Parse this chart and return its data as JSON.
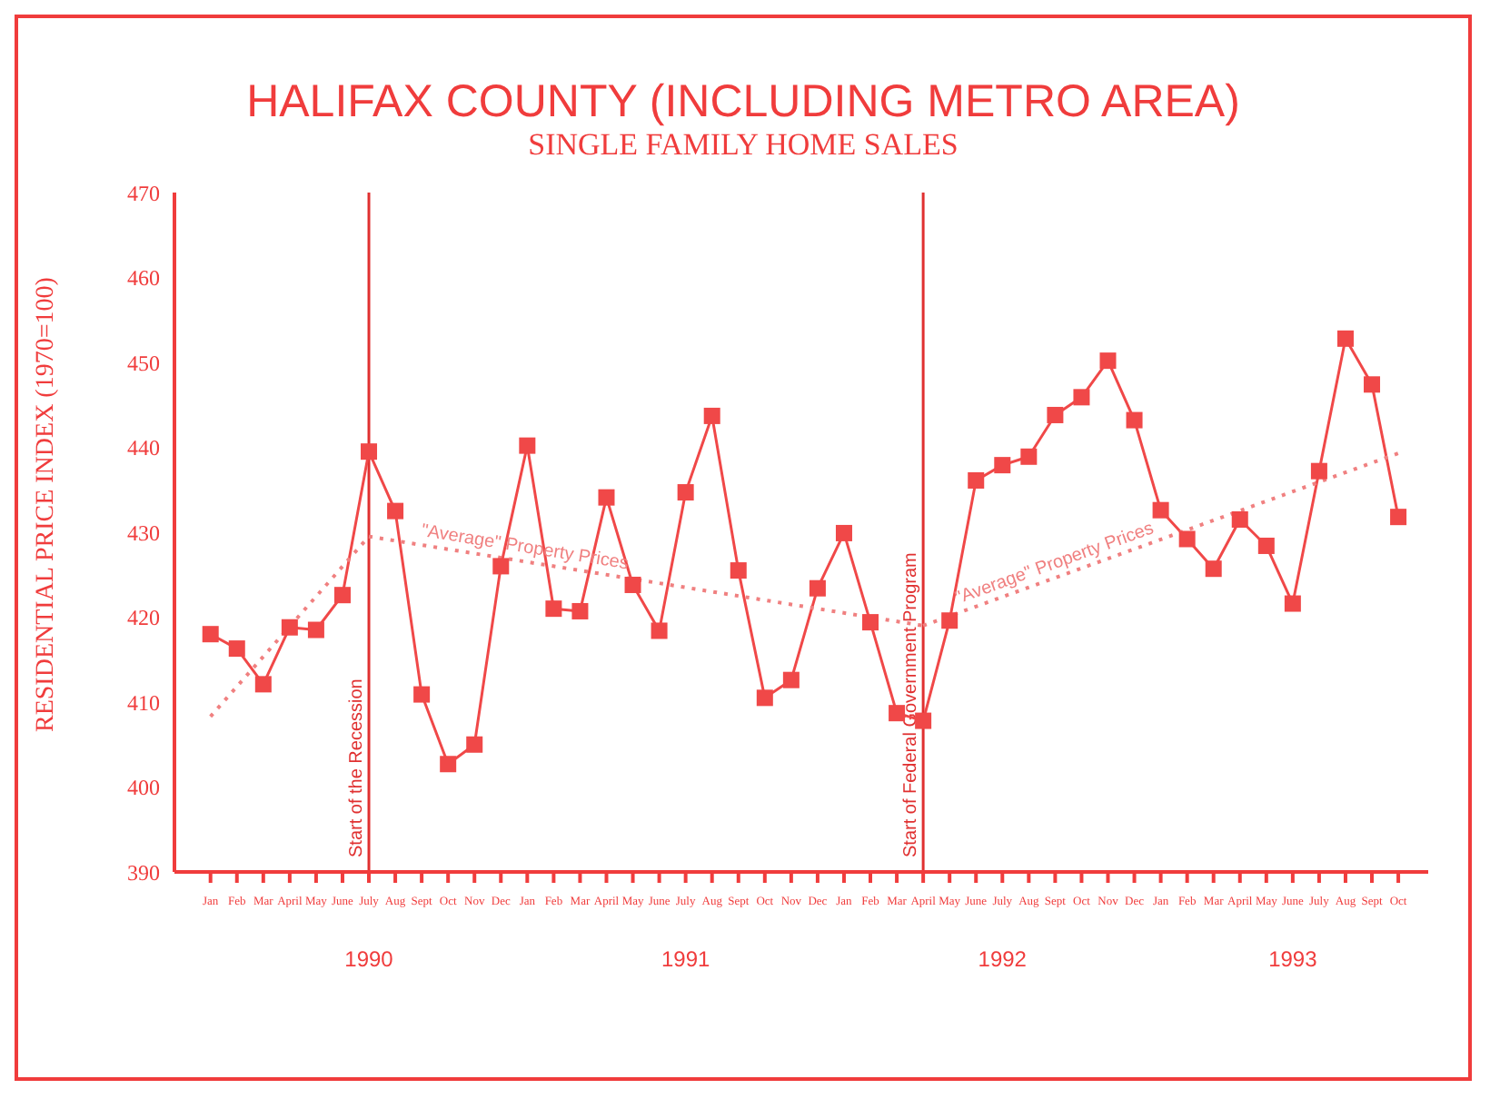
{
  "chart_data": {
    "type": "line",
    "title": "HALIFAX COUNTY (INCLUDING METRO AREA)",
    "subtitle": "SINGLE FAMILY HOME SALES",
    "ylabel": "RESIDENTIAL PRICE INDEX (1970=100)",
    "x": [
      "1990-01",
      "1990-02",
      "1990-03",
      "1990-04",
      "1990-05",
      "1990-06",
      "1990-07",
      "1990-08",
      "1990-09",
      "1990-10",
      "1990-11",
      "1990-12",
      "1991-01",
      "1991-02",
      "1991-03",
      "1991-04",
      "1991-05",
      "1991-06",
      "1991-07",
      "1991-08",
      "1991-09",
      "1991-10",
      "1991-11",
      "1991-12",
      "1992-01",
      "1992-02",
      "1992-03",
      "1992-04",
      "1992-05",
      "1992-06",
      "1992-07",
      "1992-08",
      "1992-09",
      "1992-10",
      "1992-11",
      "1992-12",
      "1993-01",
      "1993-02",
      "1993-03",
      "1993-04",
      "1993-05",
      "1993-06",
      "1993-07",
      "1993-08",
      "1993-09",
      "1993-10"
    ],
    "series": [
      {
        "color": "#f04848",
        "marker": "square",
        "values": [
          418,
          416.3,
          412.1,
          418.8,
          418.5,
          422.6,
          439.5,
          432.5,
          410.9,
          402.7,
          405,
          426,
          440.2,
          421,
          420.7,
          434.1,
          423.8,
          418.4,
          434.7,
          443.7,
          425.5,
          410.5,
          412.6,
          423.4,
          429.9,
          419.4,
          408.7,
          407.8,
          419.6,
          436.1,
          437.9,
          438.9,
          443.8,
          445.9,
          450.2,
          443.2,
          432.6,
          429.2,
          425.7,
          431.5,
          428.4,
          421.6,
          437.2,
          452.8,
          447.4,
          431.8
        ]
      },
      {
        "color": "#f08080",
        "marker": "none",
        "line_style": "dotted",
        "x": [
          "1990-01",
          "1990-07"
        ],
        "values": [
          408.3,
          429.5
        ]
      },
      {
        "name": "\"Average\" Property Prices",
        "color": "#f08080",
        "marker": "none",
        "line_style": "dotted",
        "x": [
          "1990-07",
          "1992-04"
        ],
        "values": [
          429.5,
          419
        ]
      },
      {
        "name": "\"Average\" Property Prices",
        "color": "#f08080",
        "marker": "none",
        "line_style": "dotted",
        "x": [
          "1992-04",
          "1993-10"
        ],
        "values": [
          419,
          439.3
        ]
      }
    ],
    "xlim": [
      "1989-11-20",
      "1993-11-05"
    ],
    "xticks": [
      {
        "value": "1990-01",
        "label": "Jan"
      },
      {
        "value": "1990-02",
        "label": "Feb"
      },
      {
        "value": "1990-03",
        "label": "Mar"
      },
      {
        "value": "1990-04",
        "label": "April"
      },
      {
        "value": "1990-05",
        "label": "May"
      },
      {
        "value": "1990-06",
        "label": "June"
      },
      {
        "value": "1990-07",
        "label": "July"
      },
      {
        "value": "1990-08",
        "label": "Aug"
      },
      {
        "value": "1990-09",
        "label": "Sept"
      },
      {
        "value": "1990-10",
        "label": "Oct"
      },
      {
        "value": "1990-11",
        "label": "Nov"
      },
      {
        "value": "1990-12",
        "label": "Dec"
      },
      {
        "value": "1991-01",
        "label": "Jan"
      },
      {
        "value": "1991-02",
        "label": "Feb"
      },
      {
        "value": "1991-03",
        "label": "Mar"
      },
      {
        "value": "1991-04",
        "label": "April"
      },
      {
        "value": "1991-05",
        "label": "May"
      },
      {
        "value": "1991-06",
        "label": "June"
      },
      {
        "value": "1991-07",
        "label": "July"
      },
      {
        "value": "1991-08",
        "label": "Aug"
      },
      {
        "value": "1991-09",
        "label": "Sept"
      },
      {
        "value": "1991-10",
        "label": "Oct"
      },
      {
        "value": "1991-11",
        "label": "Nov"
      },
      {
        "value": "1991-12",
        "label": "Dec"
      },
      {
        "value": "1992-01",
        "label": "Jan"
      },
      {
        "value": "1992-02",
        "label": "Feb"
      },
      {
        "value": "1992-03",
        "label": "Mar"
      },
      {
        "value": "1992-04",
        "label": "April"
      },
      {
        "value": "1992-05",
        "label": "May"
      },
      {
        "value": "1992-06",
        "label": "June"
      },
      {
        "value": "1992-07",
        "label": "July"
      },
      {
        "value": "1992-08",
        "label": "Aug"
      },
      {
        "value": "1992-09",
        "label": "Sept"
      },
      {
        "value": "1992-10",
        "label": "Oct"
      },
      {
        "value": "1992-11",
        "label": "Nov"
      },
      {
        "value": "1992-12",
        "label": "Dec"
      },
      {
        "value": "1993-01",
        "label": "Jan"
      },
      {
        "value": "1993-02",
        "label": "Feb"
      },
      {
        "value": "1993-03",
        "label": "Mar"
      },
      {
        "value": "1993-04",
        "label": "April"
      },
      {
        "value": "1993-05",
        "label": "May"
      },
      {
        "value": "1993-06",
        "label": "June"
      },
      {
        "value": "1993-07",
        "label": "July"
      },
      {
        "value": "1993-08",
        "label": "Aug"
      },
      {
        "value": "1993-09",
        "label": "Sept"
      },
      {
        "value": "1993-10",
        "label": "Oct"
      }
    ],
    "ylim": [
      390,
      470
    ],
    "yticks": [
      390,
      400,
      410,
      420,
      430,
      440,
      450,
      460,
      470
    ],
    "ref_lines": [
      {
        "axis": "x",
        "value": "1990-07",
        "label": "Start of the Recession",
        "color": "#e03030"
      },
      {
        "axis": "x",
        "value": "1992-04",
        "label": "Start of Federal Government Program",
        "color": "#e03030"
      }
    ],
    "annotations": [
      "1990",
      "1991",
      "1992",
      "1993"
    ]
  }
}
